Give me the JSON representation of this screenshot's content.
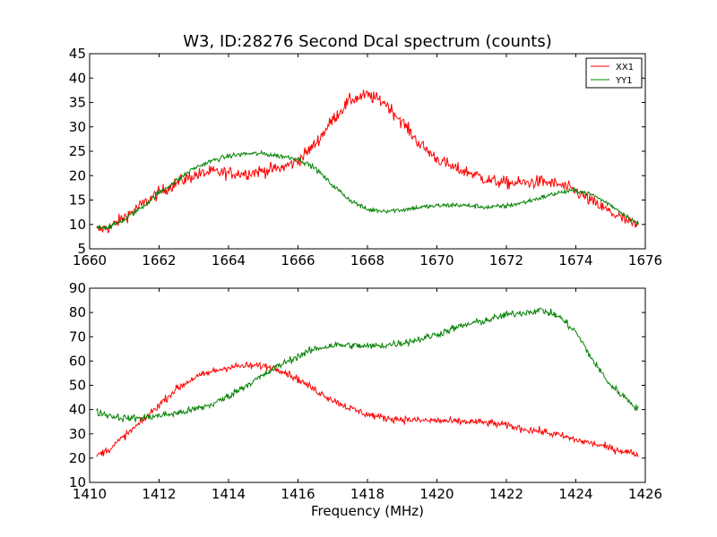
{
  "figure": {
    "title": "W3, ID:28276 Second Dcal spectrum (counts)",
    "background": "#ffffff"
  },
  "chart_data": [
    {
      "type": "line",
      "title": "W3, ID:28276 Second Dcal spectrum (counts)",
      "xlabel": "",
      "ylabel": "",
      "xlim": [
        1660,
        1676
      ],
      "ylim": [
        5,
        45
      ],
      "xticks": [
        1660,
        1662,
        1664,
        1666,
        1668,
        1670,
        1672,
        1674,
        1676
      ],
      "yticks": [
        5,
        10,
        15,
        20,
        25,
        30,
        35,
        40,
        45
      ],
      "grid": false,
      "legend": "top-right",
      "noise_note": "curves are noisy spectra; values below are the underlying trend",
      "series": [
        {
          "name": "XX1",
          "color": "#ff0000",
          "noise": 1.3,
          "x": [
            1660.2,
            1660.6,
            1661.0,
            1661.5,
            1662.0,
            1662.5,
            1663.0,
            1663.5,
            1664.0,
            1664.5,
            1665.0,
            1665.5,
            1666.0,
            1666.5,
            1667.0,
            1667.5,
            1668.0,
            1668.5,
            1669.0,
            1669.5,
            1670.0,
            1670.5,
            1671.0,
            1671.5,
            1672.0,
            1672.5,
            1673.0,
            1673.5,
            1674.0,
            1674.5,
            1675.0,
            1675.5,
            1675.8
          ],
          "y": [
            8.8,
            9.5,
            11.5,
            14.0,
            16.5,
            18.5,
            20.0,
            20.8,
            20.5,
            20.5,
            21.0,
            21.5,
            23.0,
            26.5,
            31.5,
            35.5,
            36.5,
            35.0,
            31.0,
            26.5,
            23.5,
            21.5,
            20.5,
            19.0,
            18.5,
            18.5,
            18.8,
            18.2,
            16.8,
            14.5,
            12.5,
            10.5,
            9.5
          ]
        },
        {
          "name": "YY1",
          "color": "#008000",
          "noise": 0.5,
          "x": [
            1660.2,
            1660.6,
            1661.0,
            1661.5,
            1662.0,
            1662.5,
            1663.0,
            1663.5,
            1664.0,
            1664.5,
            1665.0,
            1665.5,
            1666.0,
            1666.5,
            1667.0,
            1667.5,
            1668.0,
            1668.5,
            1669.0,
            1669.5,
            1670.0,
            1670.5,
            1671.0,
            1671.5,
            1672.0,
            1672.5,
            1673.0,
            1673.5,
            1674.0,
            1674.5,
            1675.0,
            1675.5,
            1675.8
          ],
          "y": [
            9.5,
            9.5,
            11.0,
            13.5,
            16.5,
            19.0,
            21.5,
            23.0,
            24.0,
            24.5,
            24.5,
            24.0,
            23.5,
            21.5,
            18.0,
            15.0,
            13.0,
            12.8,
            13.0,
            13.5,
            13.8,
            14.0,
            13.8,
            13.5,
            13.8,
            14.5,
            15.5,
            16.5,
            17.0,
            16.0,
            14.0,
            11.5,
            10.0
          ]
        }
      ]
    },
    {
      "type": "line",
      "title": "",
      "xlabel": "Frequency (MHz)",
      "ylabel": "",
      "xlim": [
        1410,
        1426
      ],
      "ylim": [
        10,
        90
      ],
      "xticks": [
        1410,
        1412,
        1414,
        1416,
        1418,
        1420,
        1422,
        1424,
        1426
      ],
      "yticks": [
        10,
        20,
        30,
        40,
        50,
        60,
        70,
        80,
        90
      ],
      "grid": false,
      "legend": "none",
      "noise_note": "curves are noisy spectra; values below are the underlying trend",
      "series": [
        {
          "color": "#ff0000",
          "noise": 1.5,
          "x": [
            1410.2,
            1410.6,
            1411.0,
            1411.5,
            1412.0,
            1412.5,
            1413.0,
            1413.5,
            1414.0,
            1414.5,
            1415.0,
            1415.5,
            1416.0,
            1416.5,
            1417.0,
            1417.5,
            1418.0,
            1418.5,
            1419.0,
            1419.5,
            1420.0,
            1420.5,
            1421.0,
            1421.5,
            1422.0,
            1422.5,
            1423.0,
            1423.5,
            1424.0,
            1424.5,
            1425.0,
            1425.5,
            1425.8
          ],
          "y": [
            21.0,
            24.0,
            29.0,
            35.0,
            42.0,
            48.5,
            53.0,
            55.5,
            57.5,
            58.0,
            58.0,
            56.5,
            52.5,
            48.0,
            44.0,
            40.5,
            38.0,
            36.5,
            36.0,
            35.5,
            35.5,
            35.0,
            35.0,
            34.5,
            33.5,
            32.0,
            31.0,
            29.5,
            27.5,
            26.0,
            24.0,
            22.5,
            21.5
          ]
        },
        {
          "color": "#008000",
          "noise": 1.5,
          "x": [
            1410.2,
            1410.6,
            1411.0,
            1411.5,
            1412.0,
            1412.5,
            1413.0,
            1413.5,
            1414.0,
            1414.5,
            1415.0,
            1415.5,
            1416.0,
            1416.5,
            1417.0,
            1417.5,
            1418.0,
            1418.5,
            1419.0,
            1419.5,
            1420.0,
            1420.5,
            1421.0,
            1421.5,
            1422.0,
            1422.5,
            1423.0,
            1423.5,
            1424.0,
            1424.5,
            1425.0,
            1425.5,
            1425.8
          ],
          "y": [
            39.0,
            37.5,
            36.5,
            36.5,
            37.5,
            38.5,
            40.0,
            42.0,
            45.5,
            50.0,
            54.0,
            58.5,
            62.0,
            65.0,
            66.5,
            66.5,
            66.0,
            66.5,
            67.5,
            69.0,
            71.0,
            73.5,
            75.5,
            77.0,
            79.0,
            80.0,
            81.0,
            78.5,
            72.0,
            60.0,
            50.0,
            44.0,
            40.0
          ]
        }
      ]
    }
  ]
}
